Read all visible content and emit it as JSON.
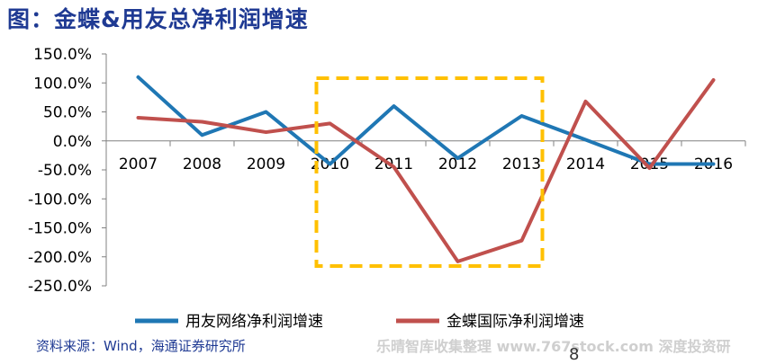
{
  "header": {
    "title": "图：金蝶&用友总净利润增速"
  },
  "footer": {
    "source": "资料来源：Wind，海通证券研究所",
    "watermark": "乐晴智库收集整理 www.767stock.com 深度投资研",
    "page_number": "8"
  },
  "chart_data": {
    "type": "line",
    "categories": [
      "2007",
      "2008",
      "2009",
      "2010",
      "2011",
      "2012",
      "2013",
      "2014",
      "2015",
      "2016"
    ],
    "series": [
      {
        "name": "用友网络净利润增速",
        "color": "#1f77b4",
        "values": [
          110,
          10,
          50,
          -40,
          60,
          -30,
          43,
          2,
          -40,
          -40
        ]
      },
      {
        "name": "金蝶国际净利润增速",
        "color": "#c0504d",
        "values": [
          40,
          33,
          15,
          30,
          -45,
          -208,
          -172,
          68,
          -47,
          105
        ]
      }
    ],
    "ylim": [
      -250,
      150
    ],
    "yticks": [
      "150.0%",
      "100.0%",
      "50.0%",
      "0.0%",
      "-50.0%",
      "-100.0%",
      "-150.0%",
      "-200.0%",
      "-250.0%"
    ],
    "ytick_values": [
      150,
      100,
      50,
      0,
      -50,
      -100,
      -150,
      -200,
      -250
    ],
    "highlight": {
      "from": "2010",
      "to": "2013",
      "color": "#ffc000"
    },
    "legend_position": "bottom",
    "grid": false
  }
}
